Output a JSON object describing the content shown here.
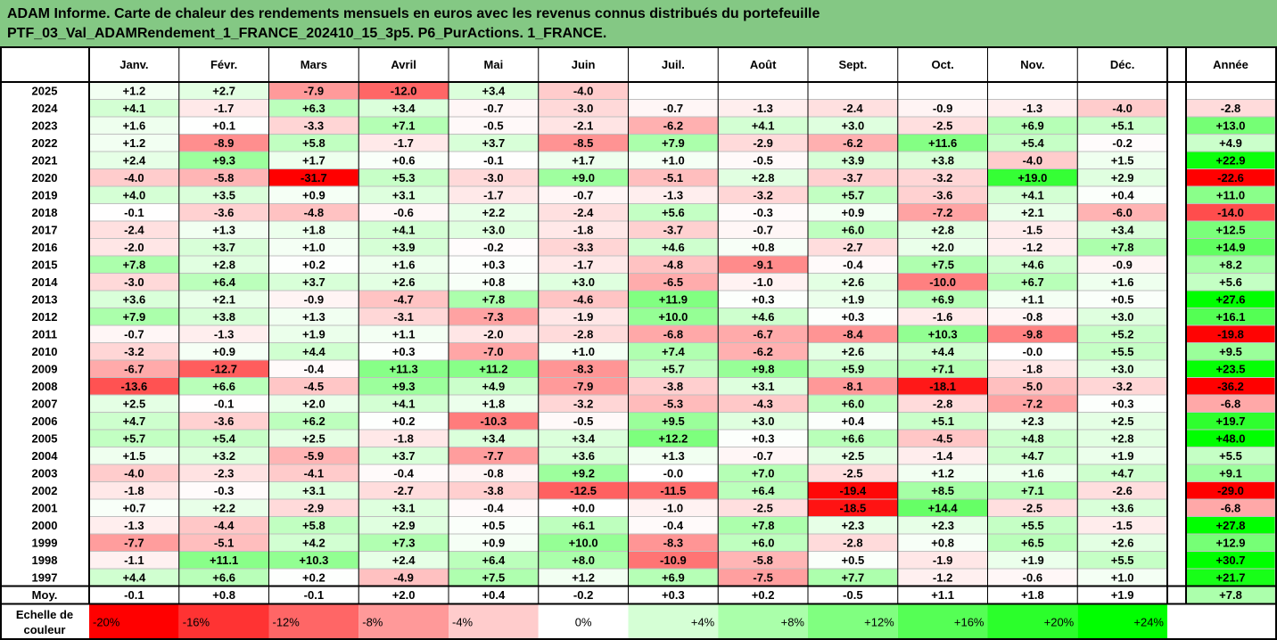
{
  "title": {
    "line1": "ADAM Informe. Carte de chaleur des rendements mensuels en euros avec les revenus connus distribués du portefeuille",
    "line2": "PTF_03_Val_ADAMRendement_1_FRANCE_202410_15_3p5. P6_PurActions. 1_FRANCE."
  },
  "colors": {
    "title_bg": "#84c884",
    "strong_red": "#ff0000",
    "strong_green": "#00ff00",
    "neutral": "#ffffff"
  },
  "chart_data": {
    "type": "heatmap",
    "columns": [
      "Janv.",
      "Févr.",
      "Mars",
      "Avril",
      "Mai",
      "Juin",
      "Juil.",
      "Août",
      "Sept.",
      "Oct.",
      "Nov.",
      "Déc."
    ],
    "year_header": "Année",
    "rows": [
      {
        "year": "2025",
        "months": [
          1.2,
          2.7,
          -7.9,
          -12.0,
          3.4,
          -4.0,
          null,
          null,
          null,
          null,
          null,
          null
        ],
        "annual": null
      },
      {
        "year": "2024",
        "months": [
          4.1,
          -1.7,
          6.3,
          3.4,
          -0.7,
          -3.0,
          -0.7,
          -1.3,
          -2.4,
          -0.9,
          -1.3,
          -4.0
        ],
        "annual": -2.8
      },
      {
        "year": "2023",
        "months": [
          1.6,
          0.1,
          -3.3,
          7.1,
          -0.5,
          -2.1,
          -6.2,
          4.1,
          3.0,
          -2.5,
          6.9,
          5.1
        ],
        "annual": 13.0
      },
      {
        "year": "2022",
        "months": [
          1.2,
          -8.9,
          5.8,
          -1.7,
          3.7,
          -8.5,
          7.9,
          -2.9,
          -6.2,
          11.6,
          5.4,
          -0.2
        ],
        "annual": 4.9
      },
      {
        "year": "2021",
        "months": [
          2.4,
          9.3,
          1.7,
          0.6,
          -0.1,
          1.7,
          1.0,
          -0.5,
          3.9,
          3.8,
          -4.0,
          1.5
        ],
        "annual": 22.9
      },
      {
        "year": "2020",
        "months": [
          -4.0,
          -5.8,
          -31.7,
          5.3,
          -3.0,
          9.0,
          -5.1,
          2.8,
          -3.7,
          -3.2,
          19.0,
          2.9
        ],
        "annual": -22.6
      },
      {
        "year": "2019",
        "months": [
          4.0,
          3.5,
          0.9,
          3.1,
          -1.7,
          -0.7,
          -1.3,
          -3.2,
          5.7,
          -3.6,
          4.1,
          0.4
        ],
        "annual": 11.0
      },
      {
        "year": "2018",
        "months": [
          -0.1,
          -3.6,
          -4.8,
          -0.6,
          2.2,
          -2.4,
          5.6,
          -0.3,
          0.9,
          -7.2,
          2.1,
          -6.0
        ],
        "annual": -14.0
      },
      {
        "year": "2017",
        "months": [
          -2.4,
          1.3,
          1.8,
          4.1,
          3.0,
          -1.8,
          -3.7,
          -0.7,
          6.0,
          2.8,
          -1.5,
          3.4
        ],
        "annual": 12.5
      },
      {
        "year": "2016",
        "months": [
          -2.0,
          3.7,
          1.0,
          3.9,
          -0.2,
          -3.3,
          4.6,
          0.8,
          -2.7,
          2.0,
          -1.2,
          7.8
        ],
        "annual": 14.9
      },
      {
        "year": "2015",
        "months": [
          7.8,
          2.8,
          0.2,
          1.6,
          0.3,
          -1.7,
          -4.8,
          -9.1,
          -0.4,
          7.5,
          4.6,
          -0.9
        ],
        "annual": 8.2
      },
      {
        "year": "2014",
        "months": [
          -3.0,
          6.4,
          3.7,
          2.6,
          0.8,
          3.0,
          -6.5,
          -1.0,
          2.6,
          -10.0,
          6.7,
          1.6
        ],
        "annual": 5.6
      },
      {
        "year": "2013",
        "months": [
          3.6,
          2.1,
          -0.9,
          -4.7,
          7.8,
          -4.6,
          11.9,
          0.3,
          1.9,
          6.9,
          1.1,
          0.5
        ],
        "annual": 27.6
      },
      {
        "year": "2012",
        "months": [
          7.9,
          3.8,
          1.3,
          -3.1,
          -7.3,
          -1.9,
          10.0,
          4.6,
          0.3,
          -1.6,
          -0.8,
          3.0
        ],
        "annual": 16.1
      },
      {
        "year": "2011",
        "months": [
          -0.7,
          -1.3,
          1.9,
          1.1,
          -2.0,
          -2.8,
          -6.8,
          -6.7,
          -8.4,
          10.3,
          -9.8,
          5.2
        ],
        "annual": -19.8
      },
      {
        "year": "2010",
        "months": [
          -3.2,
          0.9,
          4.4,
          0.3,
          -7.0,
          1.0,
          7.4,
          -6.2,
          2.6,
          4.4,
          -0.0,
          5.5
        ],
        "annual": 9.5
      },
      {
        "year": "2009",
        "months": [
          -6.7,
          -12.7,
          -0.4,
          11.3,
          11.2,
          -8.3,
          5.7,
          9.8,
          5.9,
          7.1,
          -1.8,
          3.0
        ],
        "annual": 23.5
      },
      {
        "year": "2008",
        "months": [
          -13.6,
          6.6,
          -4.5,
          9.3,
          4.9,
          -7.9,
          -3.8,
          3.1,
          -8.1,
          -18.1,
          -5.0,
          -3.2
        ],
        "annual": -36.2
      },
      {
        "year": "2007",
        "months": [
          2.5,
          -0.1,
          2.0,
          4.1,
          1.8,
          -3.2,
          -5.3,
          -4.3,
          6.0,
          -2.8,
          -7.2,
          0.3
        ],
        "annual": -6.8
      },
      {
        "year": "2006",
        "months": [
          4.7,
          -3.6,
          6.2,
          0.2,
          -10.3,
          -0.5,
          9.5,
          3.0,
          0.4,
          5.1,
          2.3,
          2.5
        ],
        "annual": 19.7
      },
      {
        "year": "2005",
        "months": [
          5.7,
          5.4,
          2.5,
          -1.8,
          3.4,
          3.4,
          12.2,
          0.3,
          6.6,
          -4.5,
          4.8,
          2.8
        ],
        "annual": 48.0
      },
      {
        "year": "2004",
        "months": [
          1.5,
          3.2,
          -5.9,
          3.7,
          -7.7,
          3.6,
          1.3,
          -0.7,
          2.5,
          -1.4,
          4.7,
          1.9
        ],
        "annual": 5.5
      },
      {
        "year": "2003",
        "months": [
          -4.0,
          -2.3,
          -4.1,
          -0.4,
          -0.8,
          9.2,
          -0.0,
          7.0,
          -2.5,
          1.2,
          1.6,
          4.7
        ],
        "annual": 9.1
      },
      {
        "year": "2002",
        "months": [
          -1.8,
          -0.3,
          3.1,
          -2.7,
          -3.8,
          -12.5,
          -11.5,
          6.4,
          -19.4,
          8.5,
          7.1,
          -2.6
        ],
        "annual": -29.0
      },
      {
        "year": "2001",
        "months": [
          0.7,
          2.2,
          -2.9,
          3.1,
          -0.4,
          0.0,
          -1.0,
          -2.5,
          -18.5,
          14.4,
          -2.5,
          3.6
        ],
        "annual": -6.8
      },
      {
        "year": "2000",
        "months": [
          -1.3,
          -4.4,
          5.8,
          2.9,
          0.5,
          6.1,
          -0.4,
          7.8,
          2.3,
          2.3,
          5.5,
          -1.5
        ],
        "annual": 27.8
      },
      {
        "year": "1999",
        "months": [
          -7.7,
          -5.1,
          4.2,
          7.3,
          0.9,
          10.0,
          -8.3,
          6.0,
          -2.8,
          0.8,
          6.5,
          2.6
        ],
        "annual": 12.9
      },
      {
        "year": "1998",
        "months": [
          -1.1,
          11.1,
          10.3,
          2.4,
          6.4,
          8.0,
          -10.9,
          -5.8,
          0.5,
          -1.9,
          1.9,
          5.5
        ],
        "annual": 30.7
      },
      {
        "year": "1997",
        "months": [
          4.4,
          6.6,
          0.2,
          -4.9,
          7.5,
          1.2,
          6.9,
          -7.5,
          7.7,
          -1.2,
          -0.6,
          1.0
        ],
        "annual": 21.7
      }
    ],
    "average": {
      "label": "Moy.",
      "months": [
        -0.1,
        0.8,
        -0.1,
        2.0,
        0.4,
        -0.2,
        0.3,
        0.2,
        -0.5,
        1.1,
        1.8,
        1.9
      ],
      "annual": 7.8
    },
    "scale": {
      "label_line1": "Echelle de",
      "label_line2": "couleur",
      "labels": [
        "-20%",
        "-16%",
        "-12%",
        "-8%",
        "-4%",
        "0%",
        "+4%",
        "+8%",
        "+12%",
        "+16%",
        "+20%",
        "+24%"
      ],
      "values": [
        -20,
        -16,
        -12,
        -8,
        -4,
        0,
        4,
        8,
        12,
        16,
        20,
        24
      ]
    },
    "color_range": {
      "negative_saturation": -20,
      "positive_saturation": 24
    }
  }
}
